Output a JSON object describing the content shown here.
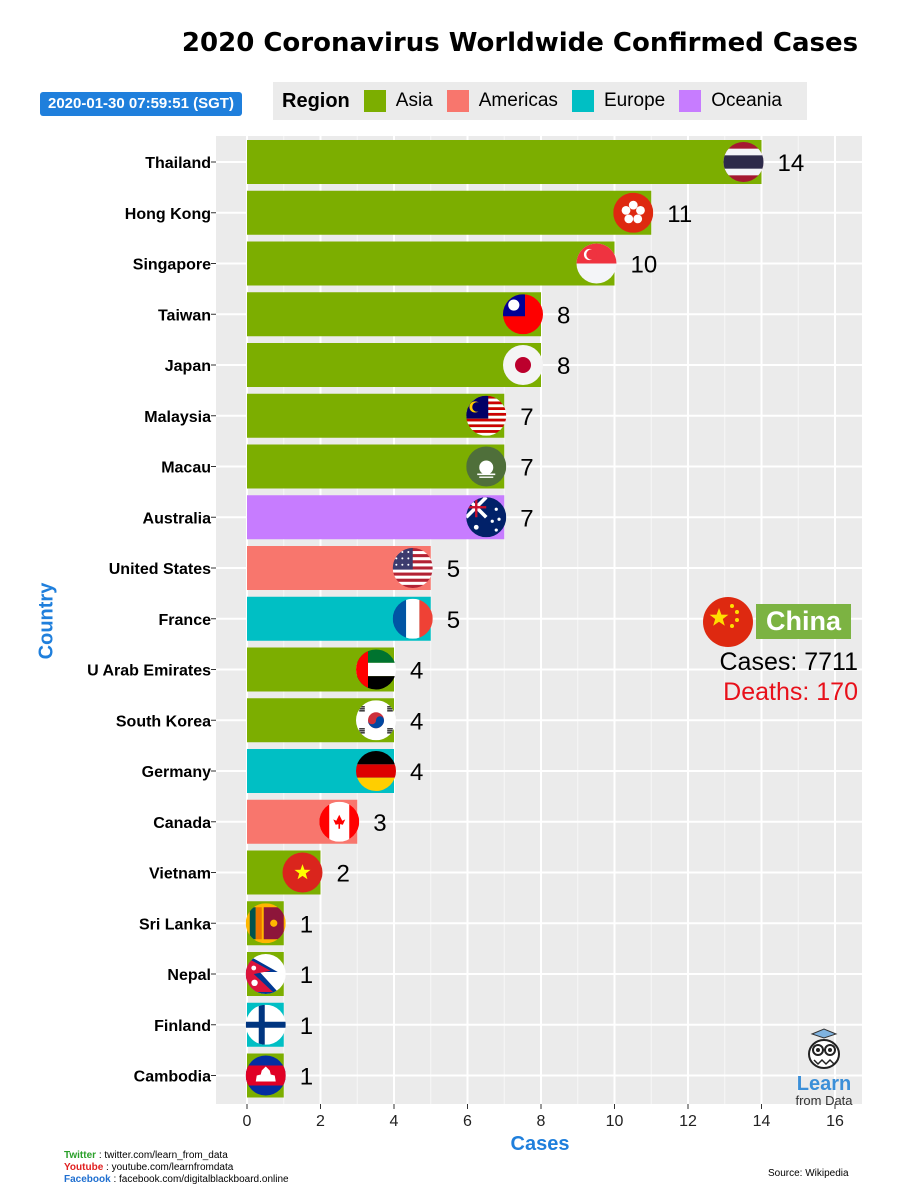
{
  "title": "2020 Coronavirus Worldwide Confirmed Cases",
  "timestamp": "2020-01-30 07:59:51 (SGT)",
  "legend": {
    "title": "Region",
    "items": [
      {
        "label": "Asia",
        "color": "#7cae00"
      },
      {
        "label": "Americas",
        "color": "#f8766d"
      },
      {
        "label": "Europe",
        "color": "#00bfc4"
      },
      {
        "label": "Oceania",
        "color": "#c77cff"
      }
    ]
  },
  "chart_data": {
    "type": "bar",
    "orientation": "horizontal",
    "title": "2020 Coronavirus Worldwide Confirmed Cases",
    "xlabel": "Cases",
    "ylabel": "Country",
    "xlim": [
      0,
      16
    ],
    "xticks": [
      0,
      2,
      4,
      6,
      8,
      10,
      12,
      14,
      16
    ],
    "grid": true,
    "bars": [
      {
        "country": "Thailand",
        "value": 14,
        "region": "Asia",
        "flag": "thailand-flag"
      },
      {
        "country": "Hong Kong",
        "value": 11,
        "region": "Asia",
        "flag": "hong-kong-flag"
      },
      {
        "country": "Singapore",
        "value": 10,
        "region": "Asia",
        "flag": "singapore-flag"
      },
      {
        "country": "Taiwan",
        "value": 8,
        "region": "Asia",
        "flag": "taiwan-flag"
      },
      {
        "country": "Japan",
        "value": 8,
        "region": "Asia",
        "flag": "japan-flag"
      },
      {
        "country": "Malaysia",
        "value": 7,
        "region": "Asia",
        "flag": "malaysia-flag"
      },
      {
        "country": "Macau",
        "value": 7,
        "region": "Asia",
        "flag": "macau-flag"
      },
      {
        "country": "Australia",
        "value": 7,
        "region": "Oceania",
        "flag": "australia-flag"
      },
      {
        "country": "United States",
        "value": 5,
        "region": "Americas",
        "flag": "usa-flag"
      },
      {
        "country": "France",
        "value": 5,
        "region": "Europe",
        "flag": "france-flag"
      },
      {
        "country": "U Arab Emirates",
        "value": 4,
        "region": "Asia",
        "flag": "uae-flag"
      },
      {
        "country": "South Korea",
        "value": 4,
        "region": "Asia",
        "flag": "south-korea-flag"
      },
      {
        "country": "Germany",
        "value": 4,
        "region": "Europe",
        "flag": "germany-flag"
      },
      {
        "country": "Canada",
        "value": 3,
        "region": "Americas",
        "flag": "canada-flag"
      },
      {
        "country": "Vietnam",
        "value": 2,
        "region": "Asia",
        "flag": "vietnam-flag"
      },
      {
        "country": "Sri Lanka",
        "value": 1,
        "region": "Asia",
        "flag": "sri-lanka-flag"
      },
      {
        "country": "Nepal",
        "value": 1,
        "region": "Asia",
        "flag": "nepal-flag"
      },
      {
        "country": "Finland",
        "value": 1,
        "region": "Europe",
        "flag": "finland-flag"
      },
      {
        "country": "Cambodia",
        "value": 1,
        "region": "Asia",
        "flag": "cambodia-flag"
      }
    ]
  },
  "callout": {
    "country": "China",
    "cases": "Cases: 7711",
    "deaths": "Deaths: 170",
    "name_color": "#7cb342",
    "deaths_color": "#e8101a"
  },
  "footer": {
    "twitter_label": "Twitter",
    "twitter": " : twitter.com/learn_from_data",
    "youtube_label": "Youtube",
    "youtube": " : youtube.com/learnfromdata",
    "facebook_label": "Facebook",
    "facebook": " : facebook.com/digitalblackboard.online",
    "source": "Source: Wikipedia"
  },
  "logo": {
    "line1": "Learn",
    "line2": "from Data"
  }
}
